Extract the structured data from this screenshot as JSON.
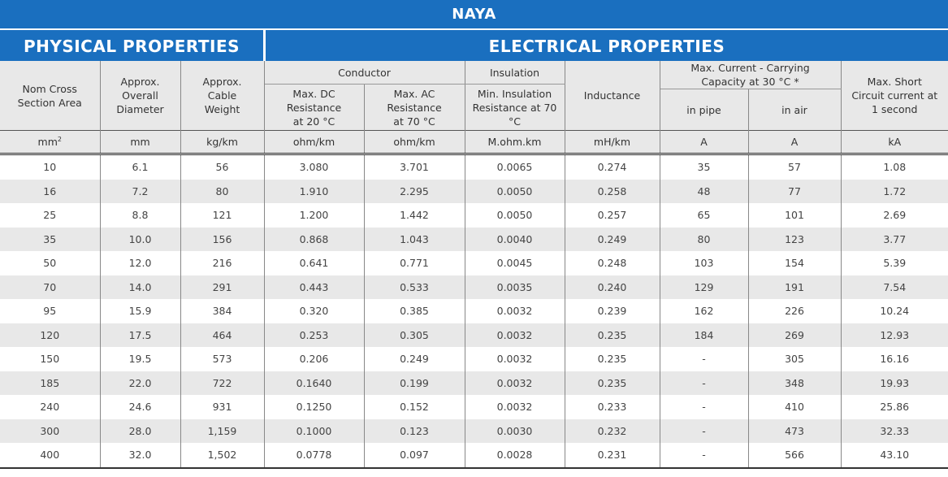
{
  "title": "NAYA",
  "sections": {
    "physical": "PHYSICAL PROPERTIES",
    "electrical": "ELECTRICAL PROPERTIES"
  },
  "headers": {
    "nom_cross": "Nom Cross Section Area",
    "diameter": "Approx. Overall Diameter",
    "weight": "Approx. Cable Weight",
    "conductor": "Conductor",
    "dc_res": "Max. DC Resistance at 20 °C",
    "ac_res": "Max. AC Resistance at 70 °C",
    "insulation": "Insulation",
    "ins_res": "Min. Insulation Resistance at 70 °C",
    "inductance": "Inductance",
    "current": "Max. Current - Carrying Capacity at 30 °C *",
    "in_pipe": "in pipe",
    "in_air": "in air",
    "short_circuit": "Max. Short Circuit current at 1 second"
  },
  "units": {
    "nom_cross": "mm",
    "nom_cross_sup": "2",
    "diameter": "mm",
    "weight": "kg/km",
    "dc_res": "ohm/km",
    "ac_res": "ohm/km",
    "ins_res": "M.ohm.km",
    "inductance": "mH/km",
    "in_pipe": "A",
    "in_air": "A",
    "short_circuit": "kA"
  },
  "rows": [
    [
      "10",
      "6.1",
      "56",
      "3.080",
      "3.701",
      "0.0065",
      "0.274",
      "35",
      "57",
      "1.08"
    ],
    [
      "16",
      "7.2",
      "80",
      "1.910",
      "2.295",
      "0.0050",
      "0.258",
      "48",
      "77",
      "1.72"
    ],
    [
      "25",
      "8.8",
      "121",
      "1.200",
      "1.442",
      "0.0050",
      "0.257",
      "65",
      "101",
      "2.69"
    ],
    [
      "35",
      "10.0",
      "156",
      "0.868",
      "1.043",
      "0.0040",
      "0.249",
      "80",
      "123",
      "3.77"
    ],
    [
      "50",
      "12.0",
      "216",
      "0.641",
      "0.771",
      "0.0045",
      "0.248",
      "103",
      "154",
      "5.39"
    ],
    [
      "70",
      "14.0",
      "291",
      "0.443",
      "0.533",
      "0.0035",
      "0.240",
      "129",
      "191",
      "7.54"
    ],
    [
      "95",
      "15.9",
      "384",
      "0.320",
      "0.385",
      "0.0032",
      "0.239",
      "162",
      "226",
      "10.24"
    ],
    [
      "120",
      "17.5",
      "464",
      "0.253",
      "0.305",
      "0.0032",
      "0.235",
      "184",
      "269",
      "12.93"
    ],
    [
      "150",
      "19.5",
      "573",
      "0.206",
      "0.249",
      "0.0032",
      "0.235",
      "-",
      "305",
      "16.16"
    ],
    [
      "185",
      "22.0",
      "722",
      "0.1640",
      "0.199",
      "0.0032",
      "0.235",
      "-",
      "348",
      "19.93"
    ],
    [
      "240",
      "24.6",
      "931",
      "0.1250",
      "0.152",
      "0.0032",
      "0.233",
      "-",
      "410",
      "25.86"
    ],
    [
      "300",
      "28.0",
      "1,159",
      "0.1000",
      "0.123",
      "0.0030",
      "0.232",
      "-",
      "473",
      "32.33"
    ],
    [
      "400",
      "32.0",
      "1,502",
      "0.0778",
      "0.097",
      "0.0028",
      "0.231",
      "-",
      "566",
      "43.10"
    ]
  ],
  "colors": {
    "header_blue": "#1a6fbf",
    "stripe": "#e8e8e8"
  }
}
